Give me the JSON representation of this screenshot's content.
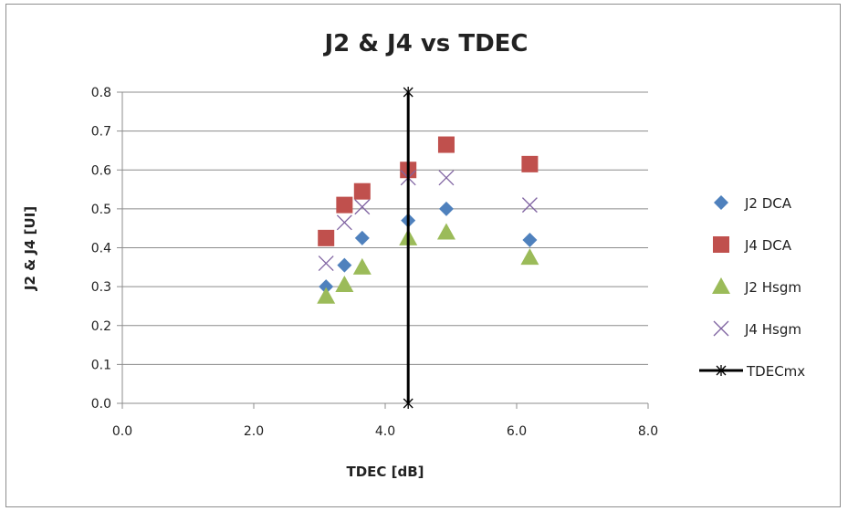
{
  "chart_data": {
    "type": "scatter",
    "title": "J2 & J4 vs TDEC",
    "xlabel": "TDEC [dB]",
    "ylabel": "J2 & J4 [UI]",
    "xlim": [
      0,
      8
    ],
    "ylim": [
      0,
      0.8
    ],
    "x_ticks": [
      "0.0",
      "2.0",
      "4.0",
      "6.0",
      "8.0"
    ],
    "y_ticks": [
      "0.0",
      "0.1",
      "0.2",
      "0.3",
      "0.4",
      "0.5",
      "0.6",
      "0.7",
      "0.8"
    ],
    "grid": "horizontal",
    "legend_position": "right",
    "series": [
      {
        "name": "J2 DCA",
        "marker": "diamond",
        "color": "#4f81bd",
        "points": [
          [
            3.1,
            0.3
          ],
          [
            3.38,
            0.355
          ],
          [
            3.65,
            0.425
          ],
          [
            4.35,
            0.47
          ],
          [
            4.93,
            0.5
          ],
          [
            6.2,
            0.42
          ]
        ]
      },
      {
        "name": "J4 DCA",
        "marker": "square",
        "color": "#c0504d",
        "points": [
          [
            3.1,
            0.425
          ],
          [
            3.38,
            0.51
          ],
          [
            3.65,
            0.545
          ],
          [
            4.35,
            0.6
          ],
          [
            4.93,
            0.665
          ],
          [
            6.2,
            0.615
          ]
        ]
      },
      {
        "name": "J2 Hsgm",
        "marker": "triangle",
        "color": "#9bbb59",
        "points": [
          [
            3.1,
            0.275
          ],
          [
            3.38,
            0.305
          ],
          [
            3.65,
            0.35
          ],
          [
            4.35,
            0.425
          ],
          [
            4.93,
            0.44
          ],
          [
            6.2,
            0.375
          ]
        ]
      },
      {
        "name": "J4 Hsgm",
        "marker": "x",
        "color": "#8064a2",
        "points": [
          [
            3.1,
            0.36
          ],
          [
            3.38,
            0.465
          ],
          [
            3.65,
            0.505
          ],
          [
            4.35,
            0.58
          ],
          [
            4.93,
            0.58
          ],
          [
            6.2,
            0.51
          ]
        ]
      },
      {
        "name": "TDECmx",
        "marker": "star-line",
        "color": "#000000",
        "points": [
          [
            4.35,
            0.0
          ],
          [
            4.35,
            0.8
          ]
        ]
      }
    ]
  }
}
